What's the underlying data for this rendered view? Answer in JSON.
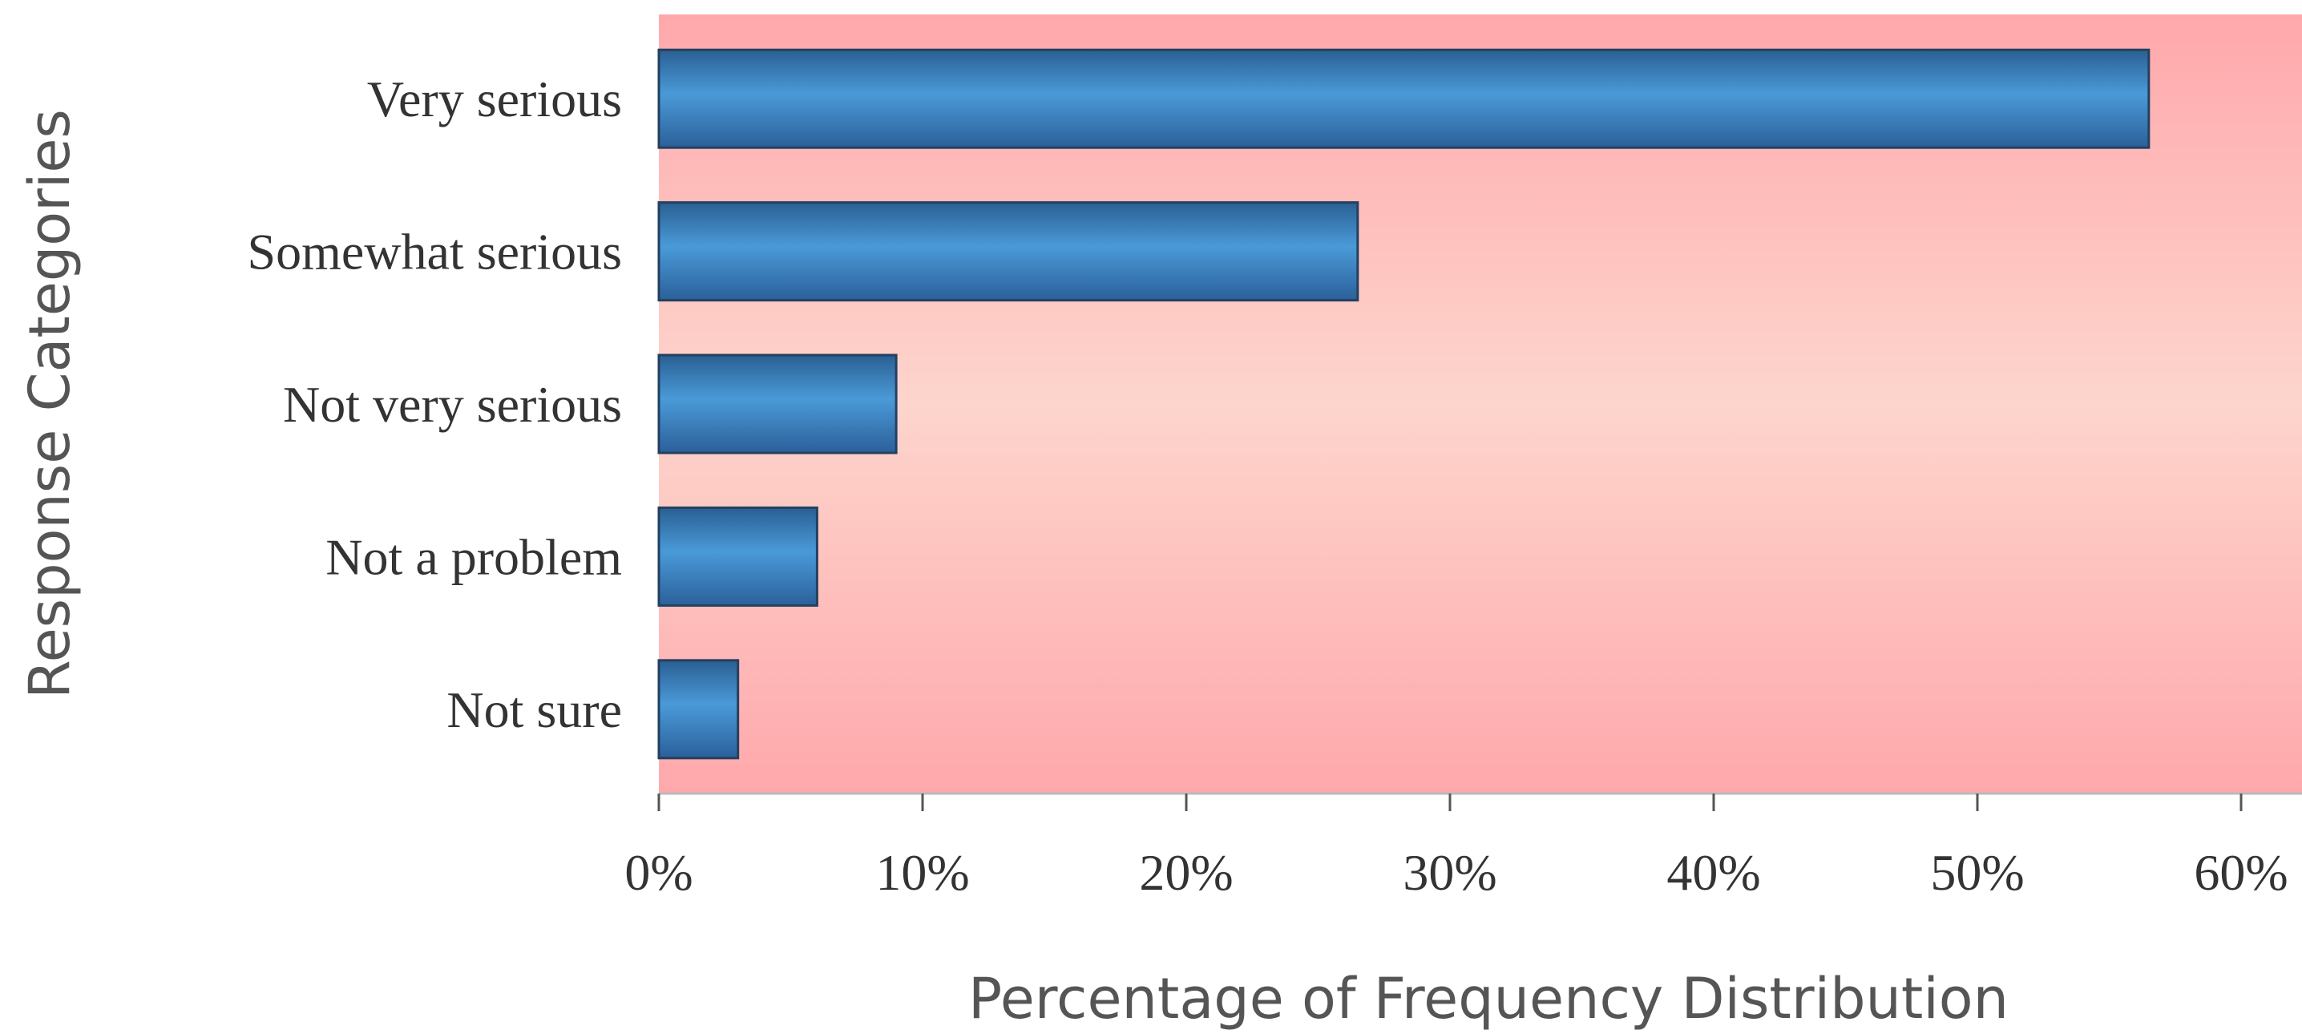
{
  "chart_data": {
    "type": "bar",
    "orientation": "horizontal",
    "categories": [
      "Very serious",
      "Somewhat serious",
      "Not very serious",
      "Not a problem",
      "Not sure"
    ],
    "values": [
      56.5,
      26.5,
      9,
      6,
      3
    ],
    "unit": "%",
    "xlabel": "Percentage of Frequency Distribution",
    "ylabel": "Response Categories",
    "xlim": [
      0,
      60
    ],
    "xticks": [
      0,
      10,
      20,
      30,
      40,
      50,
      60
    ],
    "xtick_labels": [
      "0%",
      "10%",
      "20%",
      "30%",
      "40%",
      "50%",
      "60%"
    ],
    "grid": false,
    "legend": "none",
    "colors": {
      "bar": "#3a86c6",
      "bar_edge": "#23405f",
      "background_edge": "#ffa8ac",
      "background_center": "#fdd5cc"
    }
  }
}
